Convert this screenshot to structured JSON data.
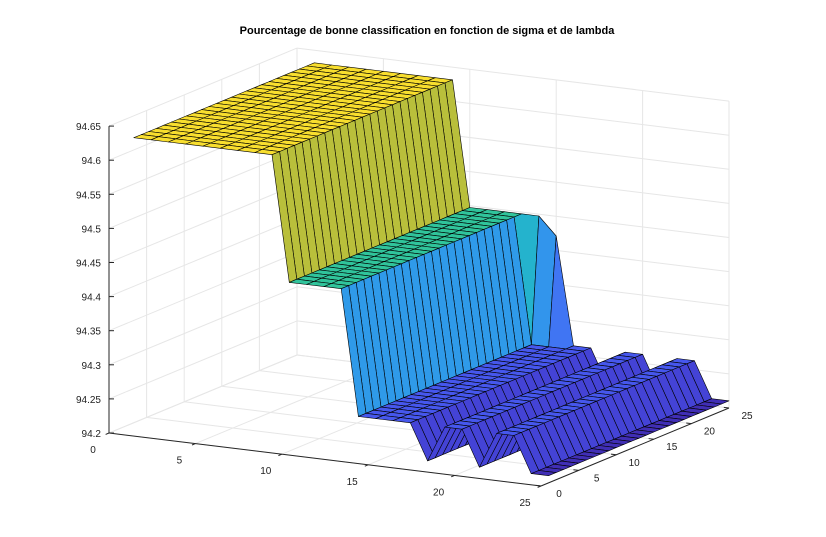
{
  "chart_data": {
    "type": "surface",
    "title": "Pourcentage de bonne classification en fonction de sigma et de lambda",
    "xlabel": "",
    "ylabel": "",
    "zlabel": "",
    "xlim": [
      0,
      25
    ],
    "ylim": [
      0,
      25
    ],
    "zlim": [
      94.2,
      94.65
    ],
    "x_ticks": [
      "0",
      "5",
      "10",
      "15",
      "20",
      "25"
    ],
    "y_ticks": [
      "0",
      "5",
      "10",
      "15",
      "20",
      "25"
    ],
    "z_ticks": [
      "94.2",
      "94.25",
      "94.3",
      "94.35",
      "94.4",
      "94.45",
      "94.5",
      "94.55",
      "94.6",
      "94.65"
    ],
    "grid": true,
    "colormap": "parula",
    "x_grid": [
      1,
      2,
      3,
      4,
      5,
      6,
      7,
      8,
      9,
      10,
      11,
      12,
      13,
      14,
      15,
      16,
      17,
      18,
      19,
      20,
      21,
      22,
      23,
      24,
      25
    ],
    "y_grid": [
      1,
      2,
      3,
      4,
      5,
      6,
      7,
      8,
      9,
      10,
      11,
      12,
      13,
      14,
      15,
      16,
      17,
      18,
      19,
      20,
      21,
      22,
      23,
      24,
      25
    ],
    "z_profile_x": [
      94.6315,
      94.6315,
      94.6315,
      94.6315,
      94.6315,
      94.6315,
      94.6315,
      94.6315,
      94.6315,
      94.4474,
      94.4474,
      94.4474,
      94.4474,
      94.2632,
      94.2632,
      94.2632,
      94.2632,
      94.2105,
      94.2632,
      94.2632,
      94.2105,
      94.2632,
      94.2632,
      94.2105,
      94.2105
    ],
    "z_offset_y": [
      0,
      0,
      0,
      0,
      0,
      0,
      0,
      0,
      0,
      0,
      0,
      0,
      0,
      0,
      0,
      0,
      0,
      0,
      0,
      0,
      0,
      0,
      0,
      0,
      0
    ],
    "special_cells": [
      {
        "x": 14,
        "y": 25,
        "z": 94.4474
      },
      {
        "x": 15,
        "y": 25,
        "z": 94.4211
      }
    ]
  },
  "colors": {
    "yellow": "#f6ec32",
    "orange": "#f0b43b",
    "green": "#4dc488",
    "cyan": "#21a9dc",
    "blue": "#4a62f2",
    "darkblue": "#3f2fb6",
    "gridline": "#e6e6e6",
    "axisline": "#262626",
    "edge": "#000000"
  }
}
